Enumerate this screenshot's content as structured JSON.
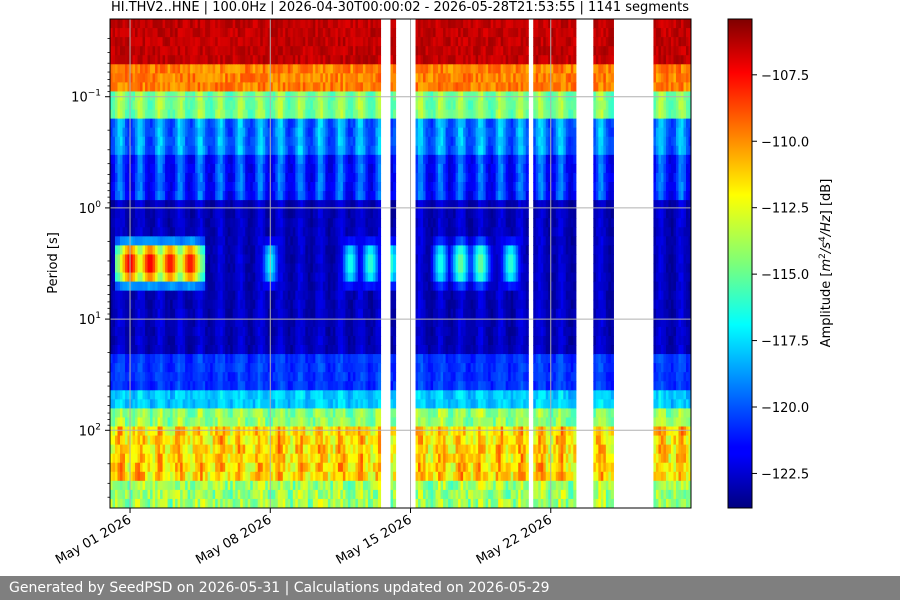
{
  "chart_data": {
    "type": "heatmap",
    "title": "HI.THV2..HNE | 100.0Hz | 2026-04-30T00:00:02 - 2026-05-28T21:53:55 | 1141 segments",
    "xlabel": "",
    "ylabel": "Period [s]",
    "x_start": "2026-04-30",
    "x_end": "2026-05-29",
    "xlim": [
      "2026-04-30",
      "2026-05-29"
    ],
    "x_ticks": [
      {
        "date": "2026-05-01",
        "label": "May 01 2026"
      },
      {
        "date": "2026-05-08",
        "label": "May 08 2026"
      },
      {
        "date": "2026-05-15",
        "label": "May 15 2026"
      },
      {
        "date": "2026-05-22",
        "label": "May 22 2026"
      }
    ],
    "y_scale": "log",
    "y_inverted": true,
    "ylim": [
      0.02,
      500
    ],
    "y_ticks": [
      {
        "value": 0.1,
        "base": "10",
        "exp": "−1"
      },
      {
        "value": 1,
        "base": "10",
        "exp": "0"
      },
      {
        "value": 10,
        "base": "10",
        "exp": "1"
      },
      {
        "value": 100,
        "base": "10",
        "exp": "2"
      }
    ],
    "grid": true,
    "colorbar": {
      "label": "Amplitude [m²/s⁴/Hz] [dB]",
      "colormap": "jet",
      "min": -123.8,
      "max": -105.4,
      "ticks": [
        {
          "value": -107.5,
          "label": "−107.5"
        },
        {
          "value": -110.0,
          "label": "−110.0"
        },
        {
          "value": -112.5,
          "label": "−112.5"
        },
        {
          "value": -115.0,
          "label": "−115.0"
        },
        {
          "value": -117.5,
          "label": "−117.5"
        },
        {
          "value": -120.0,
          "label": "−120.0"
        },
        {
          "value": -122.5,
          "label": "−122.5"
        }
      ]
    },
    "data_gaps": [
      [
        "2026-05-13T12:00",
        "2026-05-14T00:00"
      ],
      [
        "2026-05-14T07:00",
        "2026-05-15T06:00"
      ],
      [
        "2026-05-20T20:00",
        "2026-05-21T02:00"
      ],
      [
        "2026-05-23T06:00",
        "2026-05-24T02:00"
      ],
      [
        "2026-05-25T04:00",
        "2026-05-27T02:00"
      ]
    ],
    "microseism_band_period_s": [
      2,
      5
    ],
    "microseism_peaks": [
      {
        "date": "2026-05-01T00:00",
        "amplitude_db": -107.5
      },
      {
        "date": "2026-05-02T00:00",
        "amplitude_db": -107.5
      },
      {
        "date": "2026-05-03T00:00",
        "amplitude_db": -108
      },
      {
        "date": "2026-05-04T00:00",
        "amplitude_db": -108
      },
      {
        "date": "2026-05-08T00:00",
        "amplitude_db": -117
      },
      {
        "date": "2026-05-12T00:00",
        "amplitude_db": -116.5
      },
      {
        "date": "2026-05-13T00:00",
        "amplitude_db": -116
      },
      {
        "date": "2026-05-14T00:00",
        "amplitude_db": -116
      },
      {
        "date": "2026-05-16T12:00",
        "amplitude_db": -116.5
      },
      {
        "date": "2026-05-17T12:00",
        "amplitude_db": -115
      },
      {
        "date": "2026-05-18T12:00",
        "amplitude_db": -115
      },
      {
        "date": "2026-05-20T00:00",
        "amplitude_db": -116
      }
    ]
  },
  "footer": {
    "text": "Generated by SeedPSD on 2026-05-31 | Calculations updated on 2026-05-29"
  }
}
